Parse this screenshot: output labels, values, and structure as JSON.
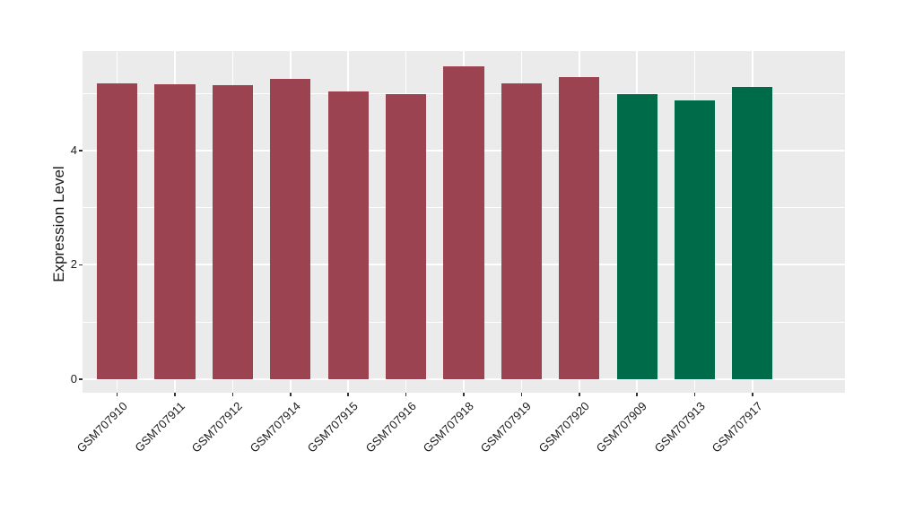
{
  "chart_data": {
    "type": "bar",
    "title": "",
    "xlabel": "",
    "ylabel": "Expression Level",
    "categories": [
      "GSM707910",
      "GSM707911",
      "GSM707912",
      "GSM707914",
      "GSM707915",
      "GSM707916",
      "GSM707918",
      "GSM707919",
      "GSM707920",
      "GSM707909",
      "GSM707913",
      "GSM707917"
    ],
    "values": [
      5.18,
      5.16,
      5.14,
      5.26,
      5.04,
      4.98,
      5.47,
      5.17,
      5.28,
      4.98,
      4.88,
      5.12
    ],
    "bar_colors": [
      "#9B4350",
      "#9B4350",
      "#9B4350",
      "#9B4350",
      "#9B4350",
      "#9B4350",
      "#9B4350",
      "#9B4350",
      "#9B4350",
      "#006B48",
      "#006B48",
      "#006B48"
    ],
    "yticks": [
      0,
      2,
      4
    ],
    "yticks_minor": [
      1,
      3,
      5
    ],
    "ylim": [
      -0.235,
      5.74
    ],
    "grid": "on",
    "legend_position": "none",
    "styles": {
      "page_bg": "#FFFFFF",
      "panel_bg": "#EBEBEB",
      "grid_color": "#FFFFFF",
      "tick_color": "#333333",
      "text_color": "#1A1A1A",
      "bar_red": "#9B4350",
      "bar_green": "#006B48"
    }
  }
}
